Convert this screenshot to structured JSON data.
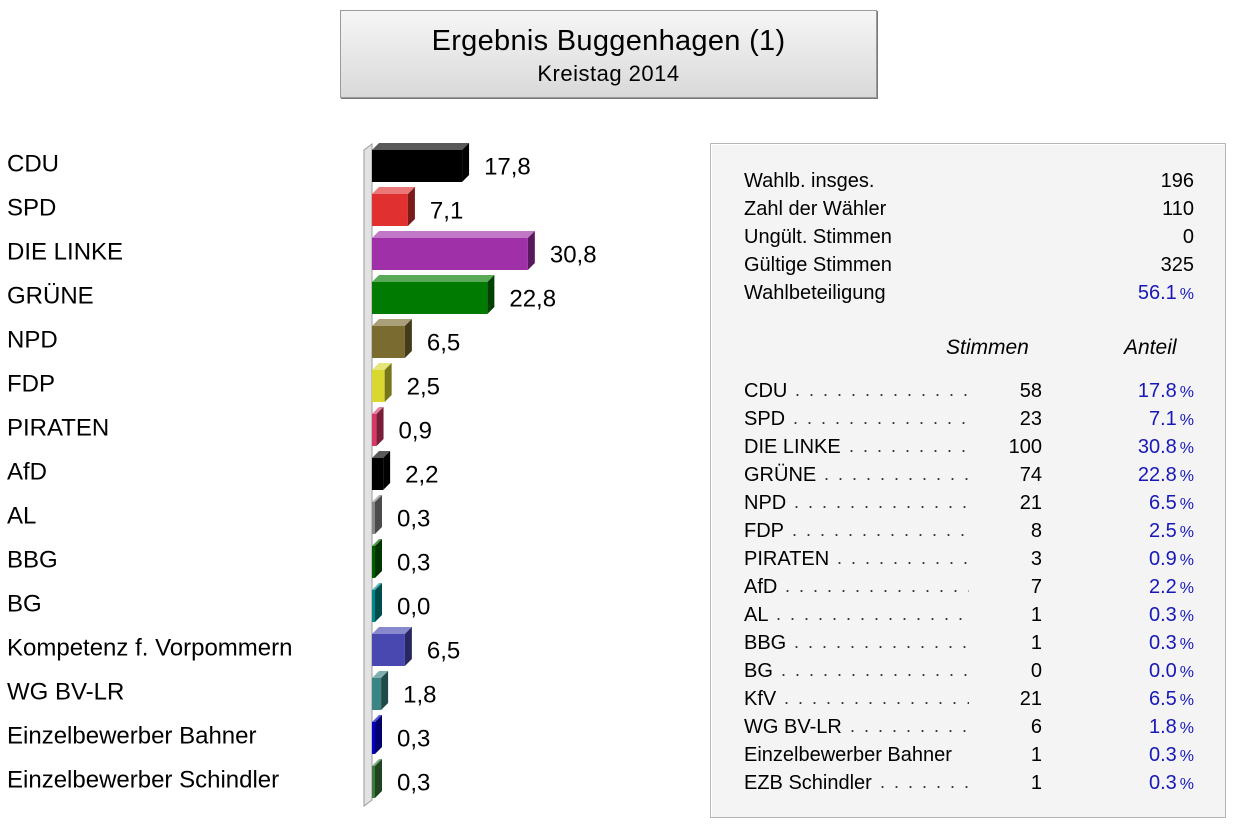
{
  "header": {
    "title": "Ergebnis Buggenhagen (1)",
    "subtitle": "Kreistag 2014"
  },
  "chart_data": {
    "type": "bar",
    "orientation": "horizontal",
    "categories": [
      "CDU",
      "SPD",
      "DIE LINKE",
      "GRÜNE",
      "NPD",
      "FDP",
      "PIRATEN",
      "AfD",
      "AL",
      "BBG",
      "BG",
      "Kompetenz f. Vorpommern",
      "WG BV-LR",
      "Einzelbewerber Bahner",
      "Einzelbewerber Schindler"
    ],
    "values": [
      17.8,
      7.1,
      30.8,
      22.8,
      6.5,
      2.5,
      0.9,
      2.2,
      0.3,
      0.3,
      0.0,
      6.5,
      1.8,
      0.3,
      0.3
    ],
    "value_labels": [
      "17,8",
      "7,1",
      "30,8",
      "22,8",
      "6,5",
      "2,5",
      "0,9",
      "2,2",
      "0,3",
      "0,3",
      "0,0",
      "6,5",
      "1,8",
      "0,3",
      "0,3"
    ],
    "colors": [
      "#000000",
      "#e03030",
      "#a030a8",
      "#007a00",
      "#7a6c30",
      "#d8d830",
      "#d83868",
      "#000000",
      "#888888",
      "#006000",
      "#008888",
      "#4848b0",
      "#3a8484",
      "#0000c8",
      "#3a7a3a"
    ],
    "xlim": [
      0,
      35
    ],
    "grid": false,
    "legend": "none"
  },
  "stats": [
    {
      "label": "Wahlb. insges.",
      "value": "196"
    },
    {
      "label": "Zahl der Wähler",
      "value": "110"
    },
    {
      "label": "Ungült. Stimmen",
      "value": "0"
    },
    {
      "label": "Gültige Stimmen",
      "value": "325"
    },
    {
      "label": "Wahlbeteiligung",
      "value": "56.1",
      "unit": "%"
    }
  ],
  "table": {
    "col_votes": "Stimmen",
    "col_share": "Anteil",
    "rows": [
      {
        "name": "CDU",
        "votes": "58",
        "share": "17.8"
      },
      {
        "name": "SPD",
        "votes": "23",
        "share": "7.1"
      },
      {
        "name": "DIE LINKE",
        "votes": "100",
        "share": "30.8"
      },
      {
        "name": "GRÜNE",
        "votes": "74",
        "share": "22.8"
      },
      {
        "name": "NPD",
        "votes": "21",
        "share": "6.5"
      },
      {
        "name": "FDP",
        "votes": "8",
        "share": "2.5"
      },
      {
        "name": "PIRATEN",
        "votes": "3",
        "share": "0.9"
      },
      {
        "name": "AfD",
        "votes": "7",
        "share": "2.2"
      },
      {
        "name": "AL",
        "votes": "1",
        "share": "0.3"
      },
      {
        "name": "BBG",
        "votes": "1",
        "share": "0.3"
      },
      {
        "name": "BG",
        "votes": "0",
        "share": "0.0"
      },
      {
        "name": "KfV",
        "votes": "21",
        "share": "6.5"
      },
      {
        "name": "WG BV-LR",
        "votes": "6",
        "share": "1.8"
      },
      {
        "name": "Einzelbewerber Bahner",
        "votes": "1",
        "share": "0.3"
      },
      {
        "name": "EZB Schindler",
        "votes": "1",
        "share": "0.3"
      }
    ],
    "pct_sign": "%"
  }
}
